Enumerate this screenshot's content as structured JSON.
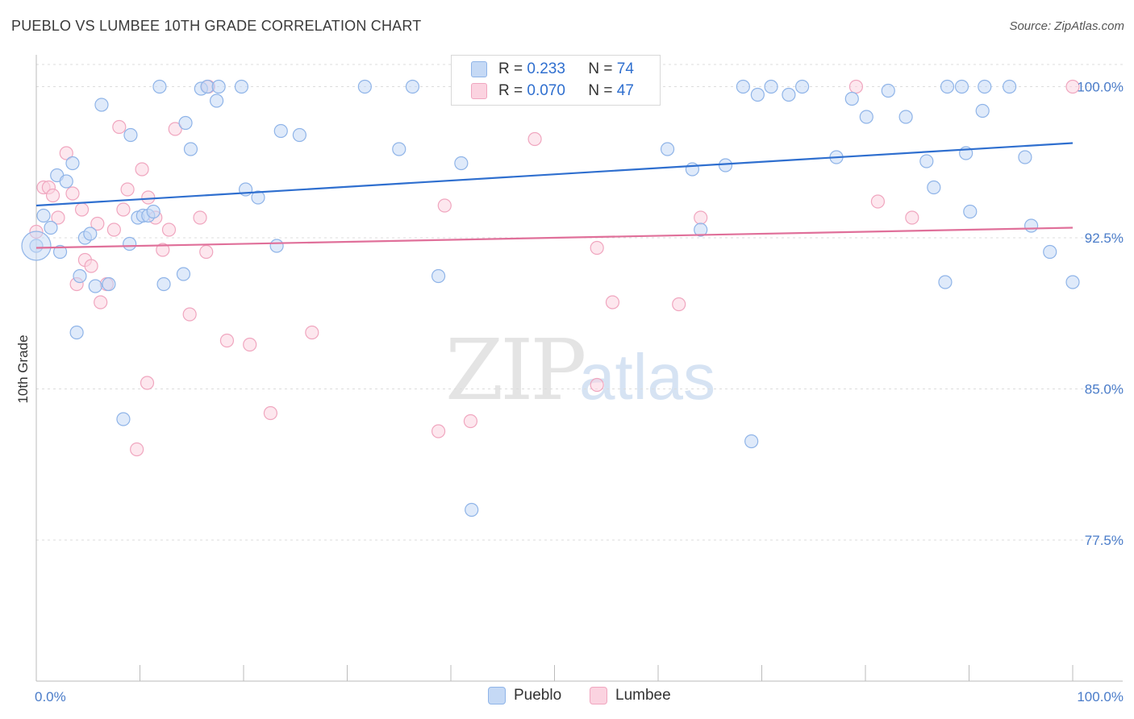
{
  "header": {
    "title": "PUEBLO VS LUMBEE 10TH GRADE CORRELATION CHART",
    "source": "Source: ZipAtlas.com"
  },
  "watermark": {
    "zip": "ZIP",
    "atlas": "atlas"
  },
  "legend": {
    "rows": [
      {
        "r_label": "R =",
        "r_value": "0.233",
        "n_label": "N =",
        "n_value": "74",
        "color": "#8fb4e8",
        "fill": "#c5d9f5"
      },
      {
        "r_label": "R =",
        "r_value": "0.070",
        "n_label": "N =",
        "n_value": "47",
        "color": "#f0a6bf",
        "fill": "#fbd3e0"
      }
    ]
  },
  "bottom_legend": {
    "pueblo": "Pueblo",
    "lumbee": "Lumbee"
  },
  "colors": {
    "pueblo_stroke": "#8fb4e8",
    "pueblo_fill": "#c5d9f5",
    "pueblo_line": "#2f6fcf",
    "lumbee_stroke": "#f0a6bf",
    "lumbee_fill": "#fbd3e0",
    "lumbee_line": "#e0709a",
    "grid": "#dcdcdc",
    "tick_text": "#4a7cc9"
  },
  "chart_data": {
    "type": "scatter",
    "title": "PUEBLO VS LUMBEE 10TH GRADE CORRELATION CHART",
    "xlabel": "",
    "ylabel": "10th Grade",
    "xlim": [
      0,
      100
    ],
    "ylim": [
      70.5,
      101.5
    ],
    "x_tick_labels": [
      "0.0%",
      "100.0%"
    ],
    "y_ticks": [
      77.5,
      85.0,
      92.5,
      100.0
    ],
    "y_tick_labels": [
      "77.5%",
      "85.0%",
      "92.5%",
      "100.0%"
    ],
    "grid": true,
    "legend_position": "top-center",
    "series": [
      {
        "name": "Pueblo",
        "trend": [
          [
            0,
            94.1
          ],
          [
            100,
            97.2
          ]
        ],
        "points": [
          [
            0.0,
            92.1
          ],
          [
            0.7,
            93.6
          ],
          [
            1.4,
            93.0
          ],
          [
            2.0,
            95.6
          ],
          [
            2.3,
            91.8
          ],
          [
            2.9,
            95.3
          ],
          [
            3.5,
            96.2
          ],
          [
            3.9,
            87.8
          ],
          [
            4.2,
            90.6
          ],
          [
            4.7,
            92.5
          ],
          [
            5.2,
            92.7
          ],
          [
            5.7,
            90.1
          ],
          [
            6.3,
            99.1
          ],
          [
            7.0,
            90.2
          ],
          [
            8.4,
            83.5
          ],
          [
            9.0,
            92.2
          ],
          [
            9.1,
            97.6
          ],
          [
            9.8,
            93.5
          ],
          [
            10.3,
            93.6
          ],
          [
            10.8,
            93.6
          ],
          [
            11.3,
            93.8
          ],
          [
            11.9,
            100.0
          ],
          [
            12.3,
            90.2
          ],
          [
            14.2,
            90.7
          ],
          [
            14.4,
            98.2
          ],
          [
            14.9,
            96.9
          ],
          [
            15.9,
            99.9
          ],
          [
            16.5,
            100.0
          ],
          [
            17.4,
            99.3
          ],
          [
            17.6,
            100.0
          ],
          [
            19.8,
            100.0
          ],
          [
            20.2,
            94.9
          ],
          [
            21.4,
            94.5
          ],
          [
            23.2,
            92.1
          ],
          [
            23.6,
            97.8
          ],
          [
            25.4,
            97.6
          ],
          [
            31.7,
            100.0
          ],
          [
            35.0,
            96.9
          ],
          [
            36.3,
            100.0
          ],
          [
            38.8,
            90.6
          ],
          [
            41.0,
            96.2
          ],
          [
            42.0,
            79.0
          ],
          [
            42.6,
            100.0
          ],
          [
            45.6,
            100.0
          ],
          [
            47.0,
            100.0
          ],
          [
            60.9,
            96.9
          ],
          [
            63.3,
            95.9
          ],
          [
            64.1,
            92.9
          ],
          [
            66.5,
            96.1
          ],
          [
            68.2,
            100.0
          ],
          [
            69.0,
            82.4
          ],
          [
            69.6,
            99.6
          ],
          [
            70.9,
            100.0
          ],
          [
            72.6,
            99.6
          ],
          [
            73.9,
            100.0
          ],
          [
            77.2,
            96.5
          ],
          [
            78.7,
            99.4
          ],
          [
            80.1,
            98.5
          ],
          [
            82.2,
            99.8
          ],
          [
            83.9,
            98.5
          ],
          [
            85.9,
            96.3
          ],
          [
            86.6,
            95.0
          ],
          [
            87.7,
            90.3
          ],
          [
            87.9,
            100.0
          ],
          [
            89.3,
            100.0
          ],
          [
            89.7,
            96.7
          ],
          [
            90.1,
            93.8
          ],
          [
            91.3,
            98.8
          ],
          [
            91.5,
            100.0
          ],
          [
            93.9,
            100.0
          ],
          [
            95.4,
            96.5
          ],
          [
            96.0,
            93.1
          ],
          [
            97.8,
            91.8
          ],
          [
            100.0,
            90.3
          ]
        ]
      },
      {
        "name": "Lumbee",
        "trend": [
          [
            0,
            92.0
          ],
          [
            100,
            93.0
          ]
        ],
        "points": [
          [
            0.0,
            92.8
          ],
          [
            0.7,
            95.0
          ],
          [
            1.2,
            95.0
          ],
          [
            1.6,
            94.6
          ],
          [
            2.1,
            93.5
          ],
          [
            2.9,
            96.7
          ],
          [
            3.5,
            94.7
          ],
          [
            3.9,
            90.2
          ],
          [
            4.4,
            93.9
          ],
          [
            4.7,
            91.4
          ],
          [
            5.3,
            91.1
          ],
          [
            5.9,
            93.2
          ],
          [
            6.2,
            89.3
          ],
          [
            6.8,
            90.2
          ],
          [
            7.5,
            92.9
          ],
          [
            8.0,
            98.0
          ],
          [
            8.4,
            93.9
          ],
          [
            8.8,
            94.9
          ],
          [
            9.7,
            82.0
          ],
          [
            10.2,
            95.9
          ],
          [
            10.7,
            85.3
          ],
          [
            10.8,
            94.5
          ],
          [
            11.5,
            93.5
          ],
          [
            12.2,
            91.9
          ],
          [
            12.8,
            92.9
          ],
          [
            13.4,
            97.9
          ],
          [
            14.8,
            88.7
          ],
          [
            15.8,
            93.5
          ],
          [
            16.4,
            91.8
          ],
          [
            16.6,
            100.0
          ],
          [
            18.4,
            87.4
          ],
          [
            20.6,
            87.2
          ],
          [
            22.6,
            83.8
          ],
          [
            26.6,
            87.8
          ],
          [
            38.8,
            82.9
          ],
          [
            39.4,
            94.1
          ],
          [
            41.9,
            83.4
          ],
          [
            48.1,
            97.4
          ],
          [
            54.1,
            85.2
          ],
          [
            54.1,
            92.0
          ],
          [
            55.6,
            89.3
          ],
          [
            62.0,
            89.2
          ],
          [
            64.1,
            93.5
          ],
          [
            79.1,
            100.0
          ],
          [
            81.2,
            94.3
          ],
          [
            84.5,
            93.5
          ],
          [
            100.0,
            100.0
          ]
        ]
      }
    ]
  }
}
